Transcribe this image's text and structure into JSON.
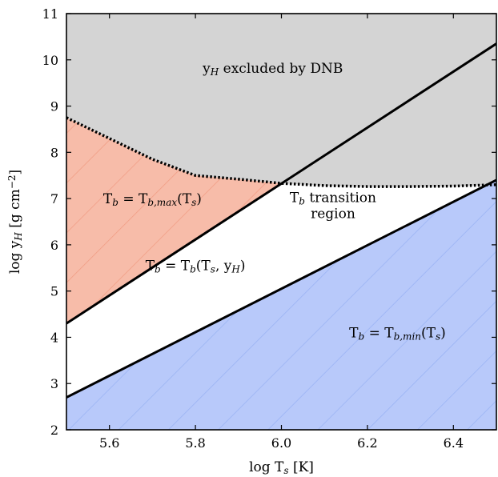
{
  "chart_data": {
    "type": "area",
    "xlabel": "log T<sub>s</sub> [K]",
    "ylabel": "log y<sub>H</sub> [g cm<sup>−2</sup>]",
    "xlim": [
      5.5,
      6.5
    ],
    "ylim": [
      2,
      11
    ],
    "xticks": [
      5.6,
      5.8,
      6.0,
      6.2,
      6.4
    ],
    "yticks": [
      2,
      3,
      4,
      5,
      6,
      7,
      8,
      9,
      10,
      11
    ],
    "grid": false,
    "lines": {
      "upper_boundary": {
        "style": "solid",
        "x": [
          5.5,
          6.5
        ],
        "y": [
          4.3,
          10.35
        ]
      },
      "lower_boundary": {
        "style": "solid",
        "x": [
          5.5,
          6.5
        ],
        "y": [
          2.7,
          7.4
        ]
      },
      "dnb_limit": {
        "style": "dotted",
        "x": [
          5.5,
          5.6,
          5.7,
          5.8,
          5.9,
          6.0,
          6.1,
          6.2,
          6.3,
          6.4,
          6.5
        ],
        "y": [
          8.75,
          8.3,
          7.85,
          7.5,
          7.42,
          7.33,
          7.28,
          7.26,
          7.26,
          7.27,
          7.3
        ]
      }
    },
    "regions": [
      {
        "id": "excluded",
        "label": "y<sub>H</sub> excluded by DNB",
        "color": "#d4d4d4",
        "label_x": 5.98,
        "label_y": 9.72
      },
      {
        "id": "tbmax",
        "label": "T<sub>b</sub> = T<sub>b,max</sub>(T<sub>s</sub>)",
        "color": "#f7bca9",
        "hatch": "#f29e86",
        "label_x": 5.7,
        "label_y": 6.9
      },
      {
        "id": "transition",
        "label_line1": "T<sub>b</sub> transition",
        "label_line2": "region",
        "label_x": 6.12,
        "label_y": 6.92
      },
      {
        "id": "middle",
        "label": "T<sub>b</sub> = T<sub>b</sub>(T<sub>s</sub>, y<sub>H</sub>)",
        "label_x": 5.8,
        "label_y": 5.45
      },
      {
        "id": "tbmin",
        "label": "T<sub>b</sub> = T<sub>b,min</sub>(T<sub>s</sub>)",
        "color": "#b8c9fa",
        "hatch": "#9bb4f4",
        "label_x": 6.27,
        "label_y": 4.0
      }
    ]
  }
}
